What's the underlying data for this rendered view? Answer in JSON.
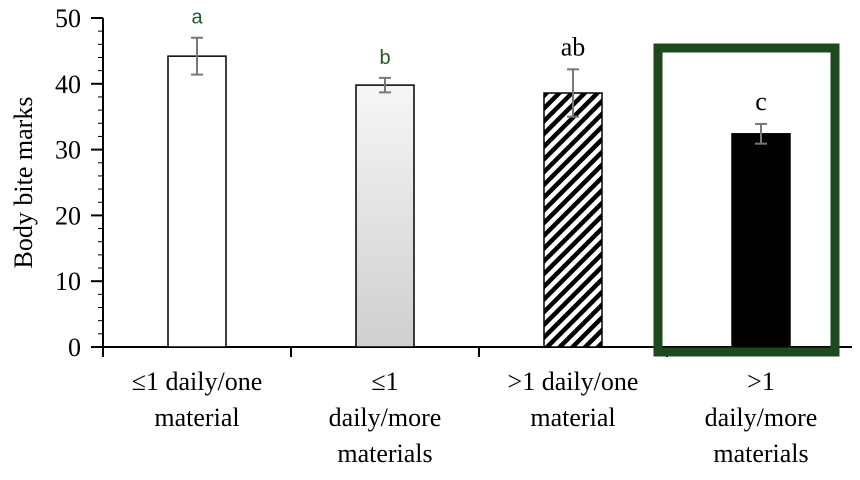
{
  "chart_data": {
    "type": "bar",
    "title": "",
    "xlabel": "",
    "ylabel": "Body bite marks",
    "ylim": [
      0,
      50
    ],
    "yticks": [
      "0",
      "10",
      "20",
      "30",
      "40",
      "50"
    ],
    "categories": [
      [
        "≤1 daily/one",
        "material"
      ],
      [
        "≤1",
        "daily/more",
        "materials"
      ],
      [
        ">1 daily/one",
        "material"
      ],
      [
        ">1",
        "daily/more",
        "materials"
      ]
    ],
    "values": [
      44.2,
      39.8,
      38.6,
      32.4
    ],
    "errors": [
      2.8,
      1.1,
      3.6,
      1.5
    ],
    "significance_letters": [
      "a",
      "b",
      "ab",
      "c"
    ],
    "bar_fills": [
      "white",
      "gradient",
      "diagonal-hatch",
      "black"
    ],
    "letter_colors": [
      "#1f5c1f",
      "#1f5c1f",
      "#000000",
      "#000000"
    ],
    "highlighted_category_index": 3,
    "highlight_color": "#1c4a1c",
    "grid": false
  }
}
